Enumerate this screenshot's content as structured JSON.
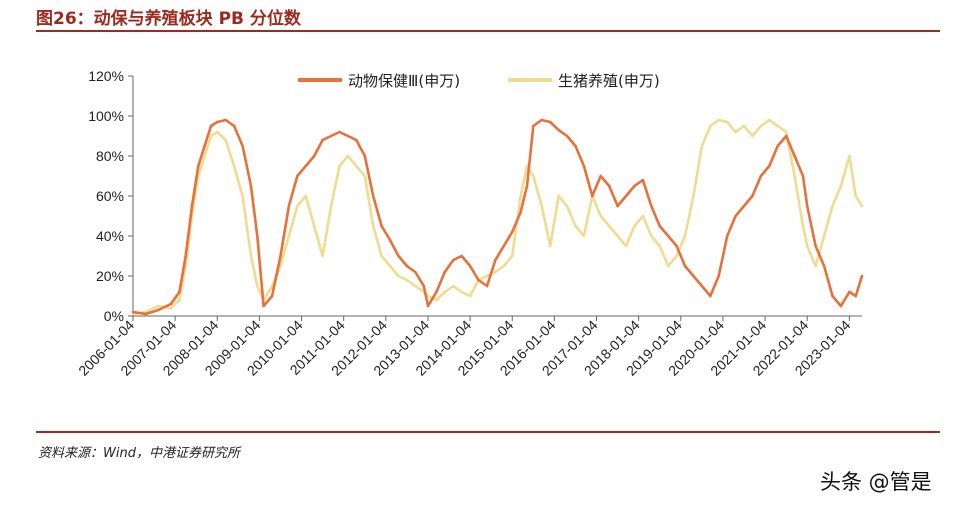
{
  "figure": {
    "title": "图26：动保与养殖板块 PB 分位数",
    "source": "资料来源：Wind，中港证券研究所",
    "watermark": "头条 @管是"
  },
  "colors": {
    "accent": "#9d2a1f",
    "series_animal_health": "#e8703a",
    "series_hog_farming": "#f0db8e"
  },
  "chart_data": {
    "type": "line",
    "title": "动保与养殖板块 PB 分位数",
    "xlabel": "",
    "ylabel": "",
    "ylim": [
      0,
      120
    ],
    "y_ticks": [
      0,
      20,
      40,
      60,
      80,
      100,
      120
    ],
    "y_tick_labels": [
      "0%",
      "20%",
      "40%",
      "60%",
      "80%",
      "100%",
      "120%"
    ],
    "x_tick_labels": [
      "2006-01-04",
      "2007-01-04",
      "2008-01-04",
      "2009-01-04",
      "2010-01-04",
      "2011-01-04",
      "2012-01-04",
      "2013-01-04",
      "2014-01-04",
      "2015-01-04",
      "2016-01-04",
      "2017-01-04",
      "2018-01-04",
      "2019-01-04",
      "2020-01-04",
      "2021-01-04",
      "2022-01-04",
      "2023-01-04"
    ],
    "x_range": [
      2006.0,
      2023.3
    ],
    "legend_position": "top",
    "grid": false,
    "series": [
      {
        "name": "动物保健Ⅲ(申万)",
        "color": "#e8703a",
        "x": [
          2006.0,
          2006.3,
          2006.6,
          2006.9,
          2007.1,
          2007.25,
          2007.4,
          2007.55,
          2007.7,
          2007.85,
          2008.0,
          2008.2,
          2008.4,
          2008.6,
          2008.8,
          2008.95,
          2009.1,
          2009.3,
          2009.5,
          2009.7,
          2009.9,
          2010.1,
          2010.3,
          2010.5,
          2010.7,
          2010.9,
          2011.1,
          2011.3,
          2011.5,
          2011.7,
          2011.9,
          2012.1,
          2012.3,
          2012.5,
          2012.7,
          2012.9,
          2013.0,
          2013.2,
          2013.4,
          2013.6,
          2013.8,
          2014.0,
          2014.2,
          2014.4,
          2014.6,
          2014.8,
          2015.0,
          2015.2,
          2015.35,
          2015.5,
          2015.7,
          2015.9,
          2016.1,
          2016.3,
          2016.5,
          2016.7,
          2016.9,
          2017.1,
          2017.3,
          2017.5,
          2017.7,
          2017.9,
          2018.1,
          2018.3,
          2018.5,
          2018.7,
          2018.9,
          2019.1,
          2019.3,
          2019.5,
          2019.7,
          2019.9,
          2020.1,
          2020.3,
          2020.5,
          2020.7,
          2020.9,
          2021.1,
          2021.3,
          2021.5,
          2021.7,
          2021.9,
          2022.0,
          2022.2,
          2022.4,
          2022.6,
          2022.8,
          2023.0,
          2023.15,
          2023.3
        ],
        "values": [
          2,
          1,
          3,
          6,
          12,
          30,
          55,
          75,
          85,
          95,
          97,
          98,
          95,
          85,
          65,
          40,
          5,
          10,
          30,
          55,
          70,
          75,
          80,
          88,
          90,
          92,
          90,
          88,
          80,
          60,
          45,
          38,
          30,
          25,
          22,
          15,
          5,
          12,
          22,
          28,
          30,
          25,
          18,
          15,
          28,
          35,
          42,
          52,
          65,
          95,
          98,
          97,
          93,
          90,
          85,
          75,
          60,
          70,
          65,
          55,
          60,
          65,
          68,
          55,
          45,
          40,
          35,
          25,
          20,
          15,
          10,
          20,
          40,
          50,
          55,
          60,
          70,
          75,
          85,
          90,
          80,
          70,
          55,
          35,
          25,
          10,
          5,
          12,
          10,
          20
        ]
      },
      {
        "name": "生猪养殖(申万)",
        "color": "#f0db8e",
        "x": [
          2006.0,
          2006.3,
          2006.6,
          2006.9,
          2007.1,
          2007.25,
          2007.4,
          2007.55,
          2007.7,
          2007.85,
          2008.0,
          2008.2,
          2008.4,
          2008.6,
          2008.8,
          2008.95,
          2009.1,
          2009.3,
          2009.5,
          2009.7,
          2009.9,
          2010.1,
          2010.3,
          2010.5,
          2010.7,
          2010.9,
          2011.1,
          2011.3,
          2011.5,
          2011.7,
          2011.9,
          2012.1,
          2012.3,
          2012.5,
          2012.7,
          2012.9,
          2013.0,
          2013.2,
          2013.4,
          2013.6,
          2013.8,
          2014.0,
          2014.2,
          2014.4,
          2014.6,
          2014.8,
          2015.0,
          2015.2,
          2015.35,
          2015.5,
          2015.7,
          2015.9,
          2016.1,
          2016.3,
          2016.5,
          2016.7,
          2016.9,
          2017.1,
          2017.3,
          2017.5,
          2017.7,
          2017.9,
          2018.1,
          2018.3,
          2018.5,
          2018.7,
          2018.9,
          2019.1,
          2019.3,
          2019.5,
          2019.7,
          2019.9,
          2020.1,
          2020.3,
          2020.5,
          2020.7,
          2020.9,
          2021.1,
          2021.3,
          2021.5,
          2021.7,
          2021.9,
          2022.0,
          2022.2,
          2022.4,
          2022.6,
          2022.8,
          2023.0,
          2023.15,
          2023.3
        ],
        "values": [
          1,
          2,
          5,
          4,
          8,
          25,
          50,
          70,
          80,
          90,
          92,
          88,
          75,
          60,
          30,
          15,
          8,
          15,
          25,
          40,
          55,
          60,
          45,
          30,
          55,
          75,
          80,
          75,
          70,
          45,
          30,
          25,
          20,
          18,
          15,
          12,
          10,
          8,
          12,
          15,
          12,
          10,
          18,
          20,
          22,
          25,
          30,
          60,
          75,
          70,
          55,
          35,
          60,
          55,
          45,
          40,
          60,
          50,
          45,
          40,
          35,
          45,
          50,
          40,
          35,
          25,
          30,
          40,
          60,
          85,
          95,
          98,
          97,
          92,
          95,
          90,
          95,
          98,
          95,
          92,
          70,
          45,
          35,
          25,
          40,
          55,
          65,
          80,
          60,
          55
        ]
      }
    ]
  }
}
